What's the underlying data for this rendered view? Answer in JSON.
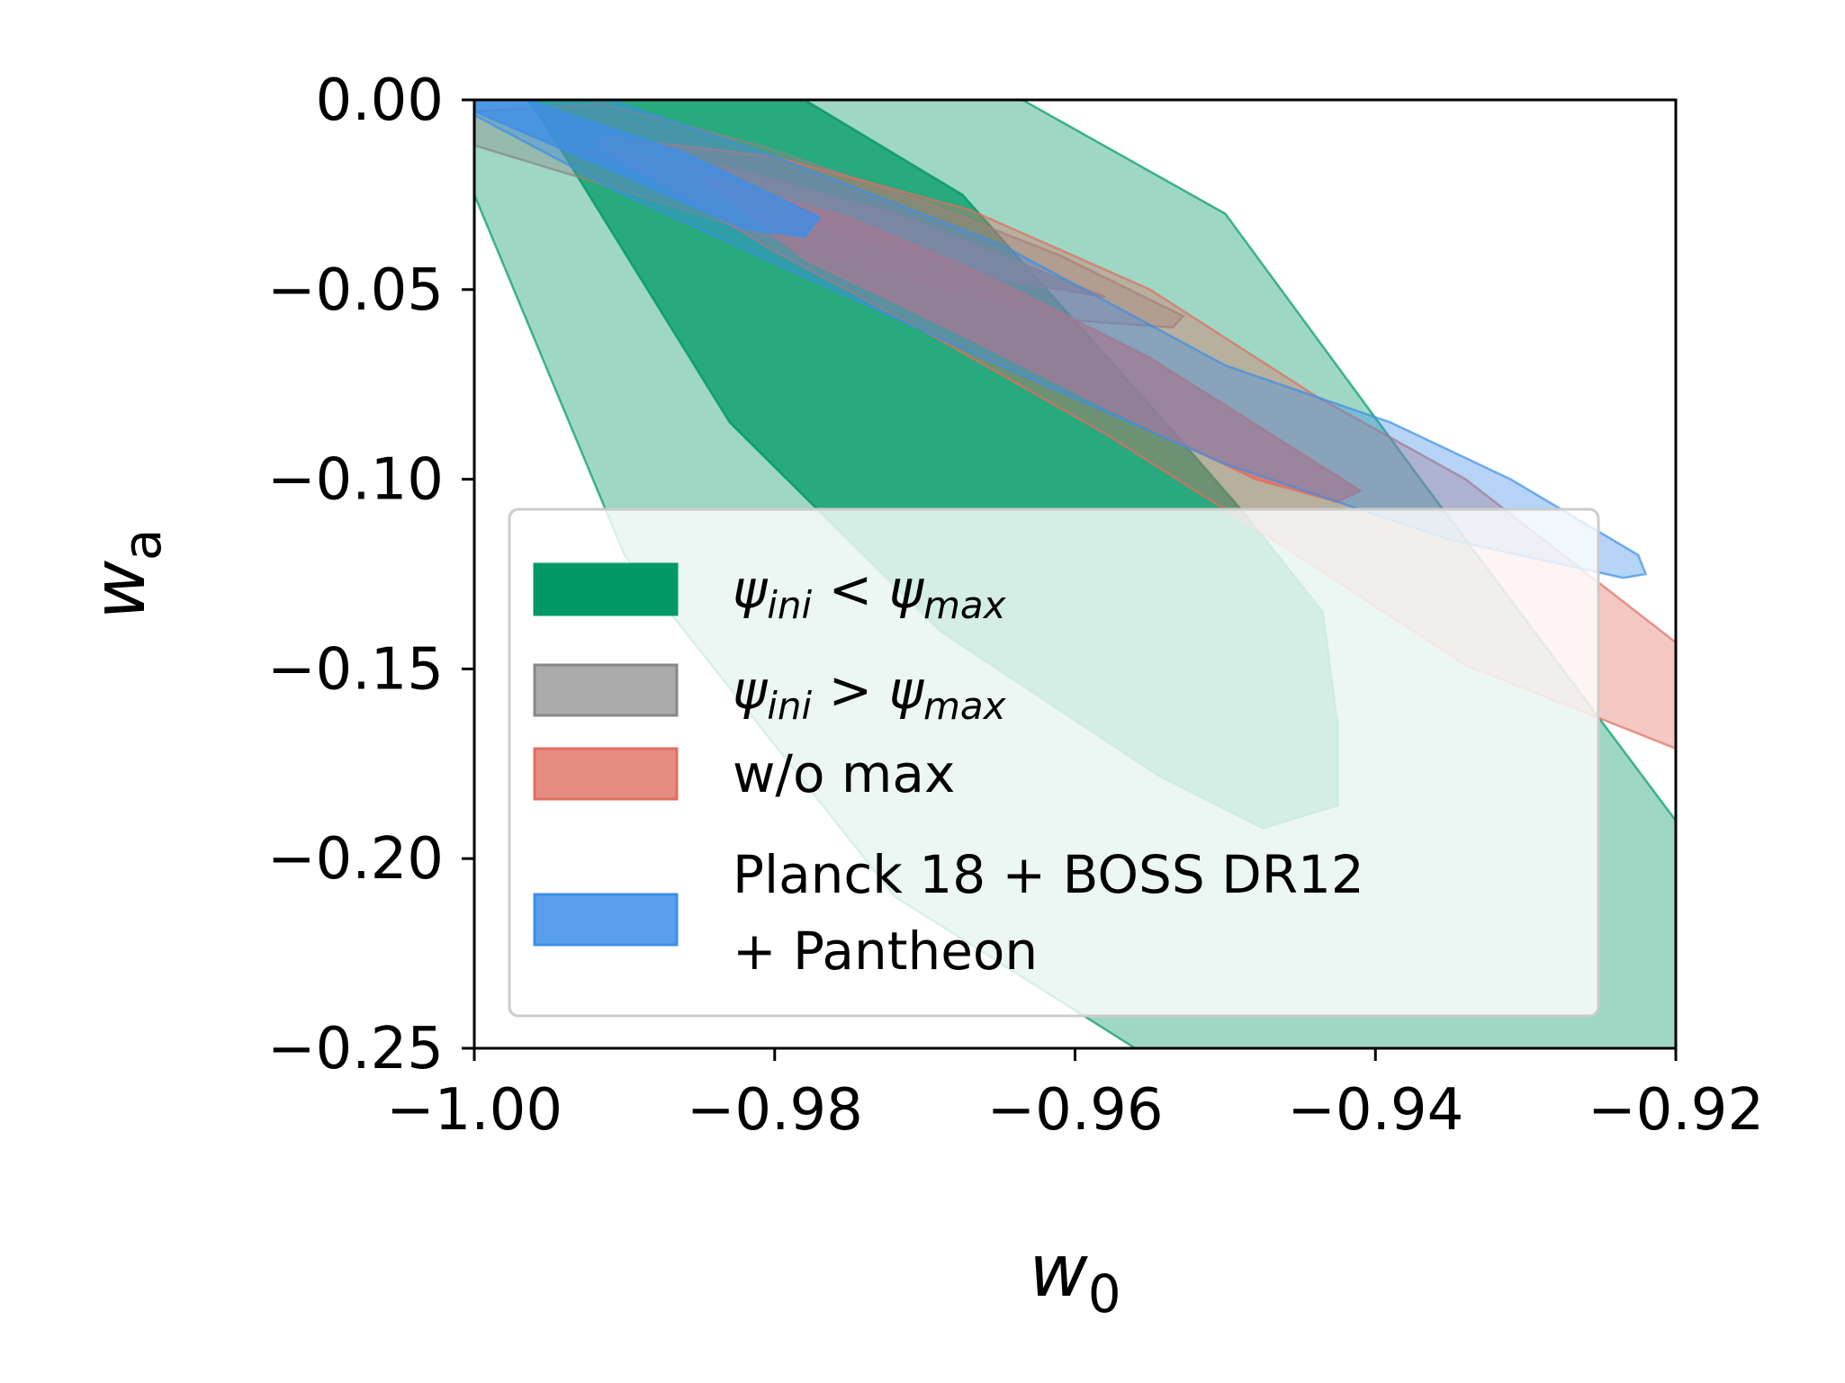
{
  "chart_data": {
    "type": "contour",
    "title": "",
    "xlabel": "w",
    "xlabel_sub": "0",
    "ylabel": "w",
    "ylabel_sub": "a",
    "xlim": [
      -1.0,
      -0.92
    ],
    "ylim": [
      -0.25,
      0.0
    ],
    "xticks": [
      -1.0,
      -0.98,
      -0.96,
      -0.94,
      -0.92
    ],
    "xtick_labels": [
      "−1.00",
      "−0.98",
      "−0.96",
      "−0.94",
      "−0.92"
    ],
    "yticks": [
      0.0,
      -0.05,
      -0.1,
      -0.15,
      -0.2,
      -0.25
    ],
    "ytick_labels": [
      "0.00",
      "−0.05",
      "−0.10",
      "−0.15",
      "−0.20",
      "−0.25"
    ],
    "grid": false,
    "legend_position": "lower-left",
    "series": [
      {
        "name": "ψini < ψmax",
        "legend_parts": [
          "ψ",
          "ini",
          " < ",
          "ψ",
          "max"
        ],
        "color": "#009966",
        "regions": {
          "outer": [
            [
              -1.0,
              -0.025
            ],
            [
              -1.0,
              0.0
            ],
            [
              -0.9635,
              0.0
            ],
            [
              -0.95,
              -0.03
            ],
            [
              -0.937,
              -0.1
            ],
            [
              -0.92,
              -0.19
            ],
            [
              -0.92,
              -0.25
            ],
            [
              -0.956,
              -0.25
            ],
            [
              -0.972,
              -0.21
            ],
            [
              -0.99,
              -0.12
            ]
          ],
          "inner": [
            [
              -0.9955,
              -0.005
            ],
            [
              -0.9965,
              0.0
            ],
            [
              -0.978,
              0.0
            ],
            [
              -0.9675,
              -0.025
            ],
            [
              -0.954,
              -0.085
            ],
            [
              -0.9485,
              -0.11
            ],
            [
              -0.9435,
              -0.135
            ],
            [
              -0.9425,
              -0.165
            ],
            [
              -0.9425,
              -0.186
            ],
            [
              -0.9475,
              -0.192
            ],
            [
              -0.9545,
              -0.178
            ],
            [
              -0.969,
              -0.14
            ],
            [
              -0.983,
              -0.085
            ]
          ]
        }
      },
      {
        "name": "ψini > ψmax",
        "legend_parts": [
          "ψ",
          "ini",
          " > ",
          "ψ",
          "max"
        ],
        "color": "#888888",
        "regions": {
          "outer": [
            [
              -1.0,
              -0.012
            ],
            [
              -1.0,
              -0.003
            ],
            [
              -0.9915,
              -0.001
            ],
            [
              -0.981,
              -0.012
            ],
            [
              -0.97,
              -0.027
            ],
            [
              -0.961,
              -0.041
            ],
            [
              -0.9528,
              -0.057
            ],
            [
              -0.9535,
              -0.06
            ],
            [
              -0.9605,
              -0.058
            ],
            [
              -0.9685,
              -0.05
            ],
            [
              -0.979,
              -0.038
            ],
            [
              -0.99,
              -0.024
            ]
          ],
          "inner": [
            [
              -0.994,
              -0.012
            ],
            [
              -0.983,
              -0.018
            ],
            [
              -0.972,
              -0.03
            ],
            [
              -0.963,
              -0.044
            ],
            [
              -0.958,
              -0.052
            ],
            [
              -0.964,
              -0.048
            ],
            [
              -0.973,
              -0.038
            ],
            [
              -0.985,
              -0.025
            ]
          ]
        }
      },
      {
        "name": "w/o max",
        "legend_parts": [
          "w/o max"
        ],
        "color": "#e06e60",
        "regions": {
          "outer": [
            [
              -0.992,
              -0.011
            ],
            [
              -0.991,
              -0.01
            ],
            [
              -0.98,
              -0.015
            ],
            [
              -0.967,
              -0.029
            ],
            [
              -0.955,
              -0.05
            ],
            [
              -0.944,
              -0.078
            ],
            [
              -0.934,
              -0.1
            ],
            [
              -0.92,
              -0.143
            ],
            [
              -0.92,
              -0.171
            ],
            [
              -0.934,
              -0.149
            ],
            [
              -0.946,
              -0.118
            ],
            [
              -0.958,
              -0.088
            ],
            [
              -0.97,
              -0.061
            ],
            [
              -0.98,
              -0.04
            ]
          ],
          "inner": [
            [
              -0.985,
              -0.02
            ],
            [
              -0.975,
              -0.031
            ],
            [
              -0.965,
              -0.048
            ],
            [
              -0.955,
              -0.068
            ],
            [
              -0.947,
              -0.088
            ],
            [
              -0.941,
              -0.103
            ],
            [
              -0.9425,
              -0.106
            ],
            [
              -0.948,
              -0.1
            ],
            [
              -0.958,
              -0.081
            ],
            [
              -0.968,
              -0.061
            ],
            [
              -0.978,
              -0.042
            ]
          ]
        }
      },
      {
        "name": "Planck 18 + BOSS DR12\n + Pantheon",
        "legend_parts": [
          "Planck 18 + BOSS DR12",
          " + Pantheon"
        ],
        "color": "#3d8ee8",
        "regions": {
          "outer": [
            [
              -1.0,
              -0.004
            ],
            [
              -1.0,
              0.0
            ],
            [
              -0.991,
              0.0
            ],
            [
              -0.98,
              -0.015
            ],
            [
              -0.965,
              -0.038
            ],
            [
              -0.95,
              -0.07
            ],
            [
              -0.939,
              -0.085
            ],
            [
              -0.931,
              -0.1
            ],
            [
              -0.9225,
              -0.12
            ],
            [
              -0.922,
              -0.125
            ],
            [
              -0.9235,
              -0.126
            ],
            [
              -0.935,
              -0.116
            ],
            [
              -0.95,
              -0.096
            ],
            [
              -0.965,
              -0.07
            ],
            [
              -0.98,
              -0.043
            ],
            [
              -0.99,
              -0.025
            ]
          ],
          "inner": [
            [
              -1.0,
              -0.003
            ],
            [
              -1.0,
              0.0
            ],
            [
              -0.9965,
              0.0
            ],
            [
              -0.986,
              -0.014
            ],
            [
              -0.977,
              -0.031
            ],
            [
              -0.978,
              -0.036
            ],
            [
              -0.982,
              -0.034
            ],
            [
              -0.99,
              -0.02
            ]
          ]
        }
      }
    ]
  }
}
